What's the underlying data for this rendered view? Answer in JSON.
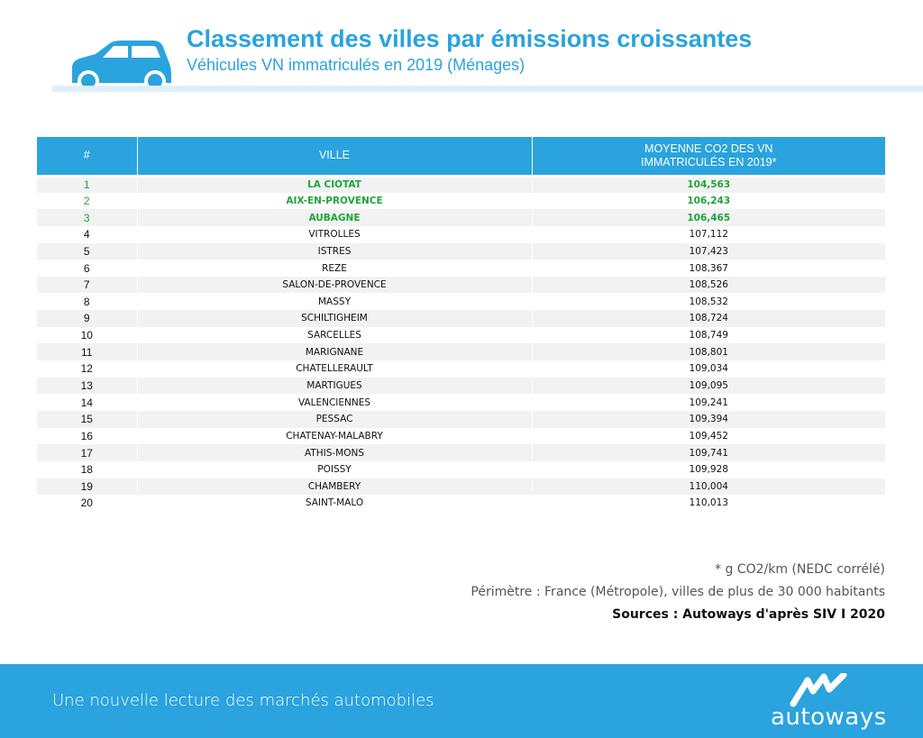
{
  "header": {
    "title": "Classement des villes par émissions croissantes",
    "subtitle": "Véhicules VN immatriculés en 2019 (Ménages)"
  },
  "table": {
    "columns": [
      "#",
      "VILLE",
      "MOYENNE CO2 DES VN",
      "IMMATRICULÉS EN 2019*"
    ],
    "rows": [
      {
        "rank": "1",
        "city": "LA CIOTAT",
        "value": "104,563"
      },
      {
        "rank": "2",
        "city": "AIX-EN-PROVENCE",
        "value": "106,243"
      },
      {
        "rank": "3",
        "city": "AUBAGNE",
        "value": "106,465"
      },
      {
        "rank": "4",
        "city": "VITROLLES",
        "value": "107,112"
      },
      {
        "rank": "5",
        "city": "ISTRES",
        "value": "107,423"
      },
      {
        "rank": "6",
        "city": "REZE",
        "value": "108,367"
      },
      {
        "rank": "7",
        "city": "SALON-DE-PROVENCE",
        "value": "108,526"
      },
      {
        "rank": "8",
        "city": "MASSY",
        "value": "108,532"
      },
      {
        "rank": "9",
        "city": "SCHILTIGHEIM",
        "value": "108,724"
      },
      {
        "rank": "10",
        "city": "SARCELLES",
        "value": "108,749"
      },
      {
        "rank": "11",
        "city": "MARIGNANE",
        "value": "108,801"
      },
      {
        "rank": "12",
        "city": "CHATELLERAULT",
        "value": "109,034"
      },
      {
        "rank": "13",
        "city": "MARTIGUES",
        "value": "109,095"
      },
      {
        "rank": "14",
        "city": "VALENCIENNES",
        "value": "109,241"
      },
      {
        "rank": "15",
        "city": "PESSAC",
        "value": "109,394"
      },
      {
        "rank": "16",
        "city": "CHATENAY-MALABRY",
        "value": "109,452"
      },
      {
        "rank": "17",
        "city": "ATHIS-MONS",
        "value": "109,741"
      },
      {
        "rank": "18",
        "city": "POISSY",
        "value": "109,928"
      },
      {
        "rank": "19",
        "city": "CHAMBERY",
        "value": "110,004"
      },
      {
        "rank": "20",
        "city": "SAINT-MALO",
        "value": "110,013"
      }
    ],
    "highlight_count": 3,
    "highlight_color": "#21a33b",
    "header_color": "#2aa3de"
  },
  "notes": {
    "unit": "* g CO2/km (NEDC corrélé)",
    "scope": "Périmètre : France (Métropole), villes de plus de 30 000 habitants",
    "sources": "Sources : Autoways d'après SIV  I  2020"
  },
  "footer": {
    "tagline": "Une nouvelle lecture des marchés automobiles",
    "brand": "autoways"
  },
  "icons": {
    "header": "car-icon",
    "footer": "autoways-logo-icon"
  },
  "colors": {
    "brand_blue": "#2aa3de",
    "header_line": "#dfeff9"
  }
}
